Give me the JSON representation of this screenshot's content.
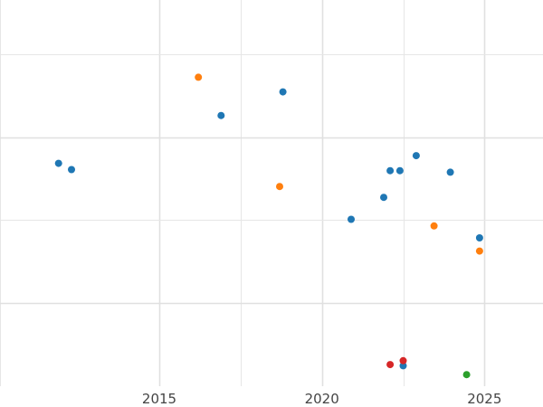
{
  "chart_data": {
    "type": "scatter",
    "title": "",
    "xlabel": "",
    "ylabel": "",
    "xlim": [
      2010.1,
      2026.8
    ],
    "ylim": [
      0,
      1
    ],
    "grid": true,
    "legend": "none",
    "x_ticks": [
      2015,
      2020,
      2025
    ],
    "x_tick_labels": [
      "2015",
      "2020",
      "2025"
    ],
    "series": [
      {
        "color": "#1f77b4",
        "points": [
          {
            "x": 2011.9,
            "y": 0.577
          },
          {
            "x": 2012.3,
            "y": 0.561
          },
          {
            "x": 2016.9,
            "y": 0.701
          },
          {
            "x": 2018.8,
            "y": 0.762
          },
          {
            "x": 2020.9,
            "y": 0.432
          },
          {
            "x": 2021.9,
            "y": 0.489
          },
          {
            "x": 2022.1,
            "y": 0.558
          },
          {
            "x": 2022.4,
            "y": 0.558
          },
          {
            "x": 2022.5,
            "y": 0.053
          },
          {
            "x": 2022.9,
            "y": 0.597
          },
          {
            "x": 2023.95,
            "y": 0.554
          },
          {
            "x": 2024.85,
            "y": 0.384
          }
        ]
      },
      {
        "color": "#ff7f0e",
        "points": [
          {
            "x": 2016.2,
            "y": 0.8
          },
          {
            "x": 2018.7,
            "y": 0.517
          },
          {
            "x": 2023.45,
            "y": 0.415
          },
          {
            "x": 2024.85,
            "y": 0.35
          }
        ]
      },
      {
        "color": "#2ca02c",
        "points": [
          {
            "x": 2024.45,
            "y": 0.03
          }
        ]
      },
      {
        "color": "#d62728",
        "points": [
          {
            "x": 2022.1,
            "y": 0.056
          },
          {
            "x": 2022.5,
            "y": 0.066
          }
        ]
      }
    ]
  }
}
